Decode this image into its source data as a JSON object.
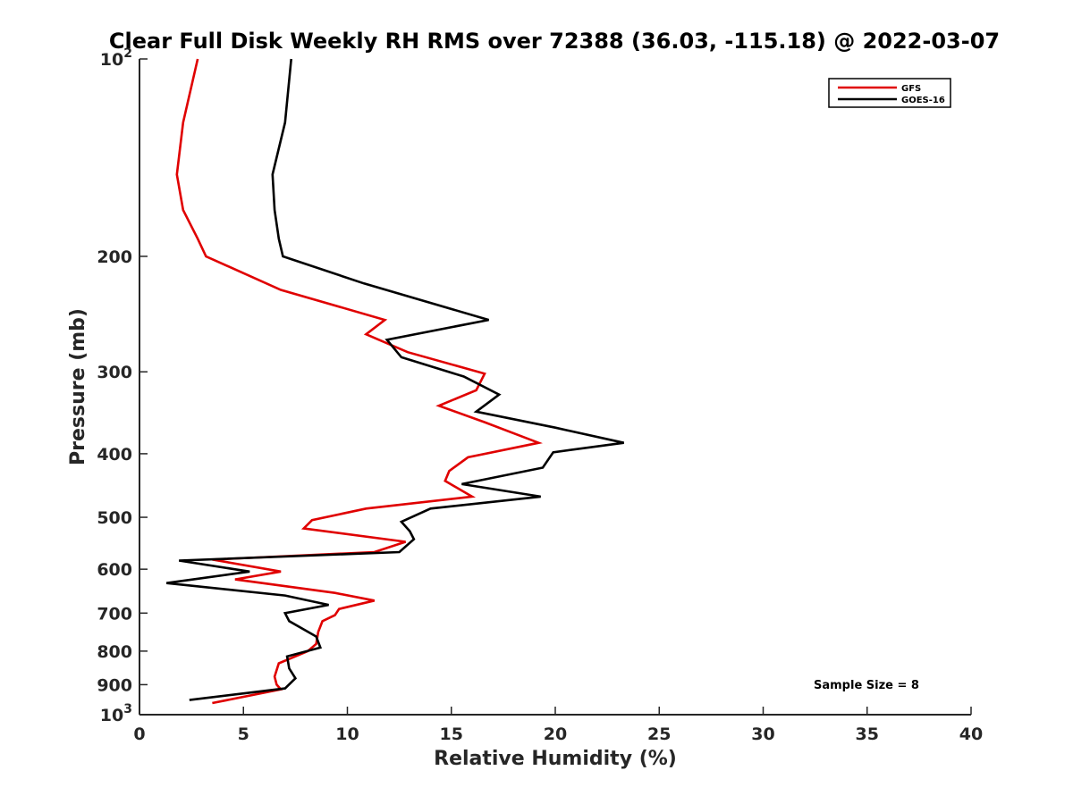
{
  "chart_data": {
    "type": "line",
    "title": "Clear Full Disk Weekly RH RMS over 72388 (36.03, -115.18) @ 2022-03-07",
    "xlabel": "Relative Humidity (%)",
    "ylabel": "Pressure (mb)",
    "xlim": [
      0,
      40
    ],
    "ylim": [
      100,
      1000
    ],
    "y_scale": "log",
    "y_reversed": true,
    "grid": false,
    "legend_position": "top-right",
    "annotation": "Sample Size = 8",
    "x_ticks": [
      0,
      5,
      10,
      15,
      20,
      25,
      30,
      35,
      40
    ],
    "y_ticks": [
      {
        "value": 100,
        "base": "10",
        "exp": "2"
      },
      {
        "value": 200,
        "label": "200"
      },
      {
        "value": 300,
        "label": "300"
      },
      {
        "value": 400,
        "label": "400"
      },
      {
        "value": 500,
        "label": "500"
      },
      {
        "value": 600,
        "label": "600"
      },
      {
        "value": 700,
        "label": "700"
      },
      {
        "value": 800,
        "label": "800"
      },
      {
        "value": 900,
        "label": "900"
      },
      {
        "value": 1000,
        "base": "10",
        "exp": "3"
      }
    ],
    "series": [
      {
        "name": "GFS",
        "color": "#e00000",
        "points": [
          [
            2.8,
            100
          ],
          [
            2.1,
            125
          ],
          [
            1.8,
            150
          ],
          [
            2.1,
            170
          ],
          [
            2.8,
            188
          ],
          [
            3.2,
            200
          ],
          [
            6.8,
            225
          ],
          [
            11.8,
            250
          ],
          [
            10.9,
            263
          ],
          [
            12.9,
            280
          ],
          [
            16.6,
            302
          ],
          [
            16.2,
            320
          ],
          [
            14.4,
            338
          ],
          [
            16.6,
            358
          ],
          [
            19.2,
            385
          ],
          [
            15.8,
            405
          ],
          [
            14.9,
            425
          ],
          [
            14.7,
            440
          ],
          [
            16.0,
            465
          ],
          [
            10.9,
            485
          ],
          [
            8.3,
            505
          ],
          [
            7.9,
            520
          ],
          [
            12.8,
            545
          ],
          [
            11.3,
            565
          ],
          [
            3.5,
            580
          ],
          [
            6.8,
            605
          ],
          [
            4.6,
            622
          ],
          [
            9.4,
            652
          ],
          [
            11.3,
            670
          ],
          [
            9.6,
            690
          ],
          [
            9.4,
            705
          ],
          [
            8.8,
            720
          ],
          [
            8.6,
            748
          ],
          [
            8.5,
            780
          ],
          [
            8.1,
            800
          ],
          [
            6.7,
            835
          ],
          [
            6.5,
            875
          ],
          [
            6.6,
            900
          ],
          [
            6.8,
            915
          ],
          [
            3.5,
            960
          ]
        ]
      },
      {
        "name": "GOES-16",
        "color": "#000000",
        "points": [
          [
            7.3,
            100
          ],
          [
            7.0,
            125
          ],
          [
            6.4,
            150
          ],
          [
            6.5,
            170
          ],
          [
            6.7,
            188
          ],
          [
            6.9,
            200
          ],
          [
            10.8,
            220
          ],
          [
            16.8,
            250
          ],
          [
            11.9,
            268
          ],
          [
            12.6,
            285
          ],
          [
            15.6,
            305
          ],
          [
            17.3,
            325
          ],
          [
            16.2,
            345
          ],
          [
            20.0,
            365
          ],
          [
            23.3,
            385
          ],
          [
            19.9,
            398
          ],
          [
            19.4,
            420
          ],
          [
            15.5,
            445
          ],
          [
            19.3,
            465
          ],
          [
            14.0,
            485
          ],
          [
            12.6,
            508
          ],
          [
            13.0,
            525
          ],
          [
            13.2,
            540
          ],
          [
            12.5,
            565
          ],
          [
            1.9,
            582
          ],
          [
            5.3,
            605
          ],
          [
            1.3,
            630
          ],
          [
            7.0,
            658
          ],
          [
            9.1,
            680
          ],
          [
            7.0,
            700
          ],
          [
            7.2,
            720
          ],
          [
            8.5,
            760
          ],
          [
            8.7,
            790
          ],
          [
            7.1,
            815
          ],
          [
            7.2,
            850
          ],
          [
            7.5,
            880
          ],
          [
            7.0,
            912
          ],
          [
            2.4,
            950
          ]
        ]
      }
    ]
  }
}
